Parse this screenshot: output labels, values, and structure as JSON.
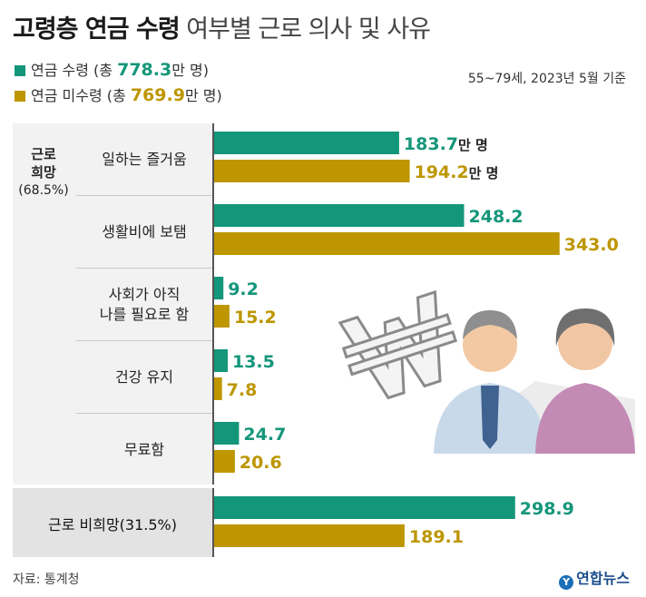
{
  "title_bold": "고령층 연금 수령",
  "title_light": " 여부별 근로 의사 및 사유",
  "legend": [
    {
      "prefix": "연금 수령 (총 ",
      "num": "778.3",
      "suffix": "만 명)",
      "color": "#14967a"
    },
    {
      "prefix": "연금 미수령 (총 ",
      "num": "769.9",
      "suffix": "만 명)",
      "color": "#bd9600"
    }
  ],
  "note": "55~79세, 2023년 5월 기준",
  "group1": {
    "label": "근로\n희망",
    "pct": "(68.5%)"
  },
  "source": "자료: 통계청",
  "logo": "연합뉴스",
  "chart_data": {
    "type": "bar",
    "orientation": "horizontal",
    "unit": "만 명",
    "categories": [
      "일하는 즐거움",
      "생활비에 보탬",
      "사회가 아직 나를 필요로 함",
      "건강 유지",
      "무료함",
      "근로 비희망(31.5%)"
    ],
    "category_lines": [
      [
        "일하는 즐거움"
      ],
      [
        "생활비에 보탬"
      ],
      [
        "사회가 아직",
        "나를 필요로 함"
      ],
      [
        "건강 유지"
      ],
      [
        "무료함"
      ],
      [
        "근로 비희망(31.5%)"
      ]
    ],
    "series": [
      {
        "name": "연금 수령",
        "color": "#14967a",
        "values": [
          183.7,
          248.2,
          9.2,
          13.5,
          24.7,
          298.9
        ],
        "labels": [
          "183.7만 명",
          "248.2",
          "9.2",
          "13.5",
          "24.7",
          "298.9"
        ]
      },
      {
        "name": "연금 미수령",
        "color": "#bd9600",
        "values": [
          194.2,
          343.0,
          15.2,
          7.8,
          20.6,
          189.1
        ],
        "labels": [
          "194.2만 명",
          "343.0",
          "15.2",
          "7.8",
          "20.6",
          "189.1"
        ]
      }
    ]
  }
}
